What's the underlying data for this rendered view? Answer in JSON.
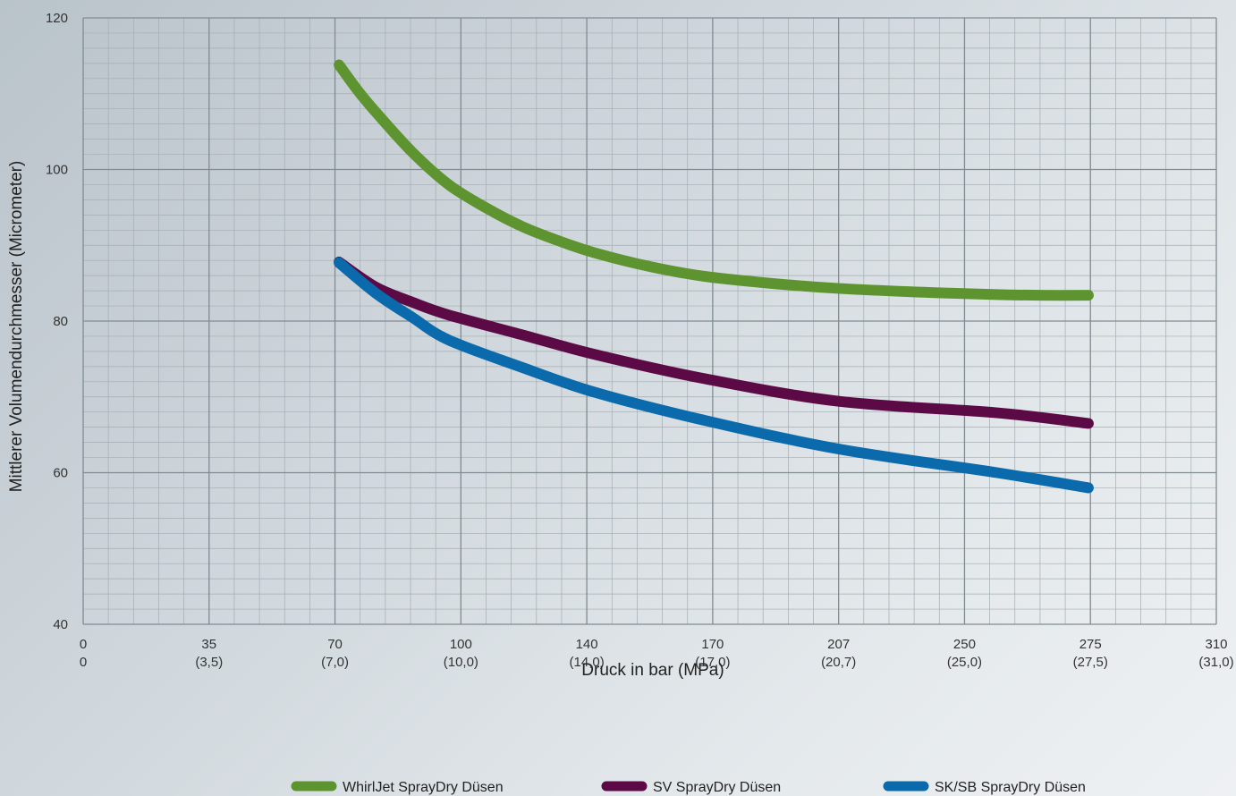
{
  "chart_data": {
    "type": "line",
    "xlabel": "Druck in bar (MPa)",
    "ylabel": "Mittlerer Volumendurchmesser (Micrometer)",
    "ylim": [
      40,
      120
    ],
    "grid": true,
    "legend_position": "bottom",
    "y_ticks": [
      "40",
      "60",
      "80",
      "100",
      "120"
    ],
    "x_ticks": [
      {
        "top": "0",
        "bottom": "0"
      },
      {
        "top": "35",
        "bottom": "(3,5)"
      },
      {
        "top": "70",
        "bottom": "(7,0)"
      },
      {
        "top": "100",
        "bottom": "(10,0)"
      },
      {
        "top": "140",
        "bottom": "(14,0)"
      },
      {
        "top": "170",
        "bottom": "(17,0)"
      },
      {
        "top": "207",
        "bottom": "(20,7)"
      },
      {
        "top": "250",
        "bottom": "(25,0)"
      },
      {
        "top": "275",
        "bottom": "(27,5)"
      },
      {
        "top": "310",
        "bottom": "(31,0)"
      }
    ],
    "x_tick_values": [
      0,
      35,
      70,
      100,
      140,
      170,
      207,
      250,
      275,
      310
    ],
    "series": [
      {
        "name": "WhirlJet SprayDry Düsen",
        "color": "#5e9430",
        "x": [
          70,
          75,
          80,
          90,
          100,
          110,
          120,
          130,
          140,
          155,
          170,
          190,
          207,
          230,
          250,
          262,
          275
        ],
        "y": [
          113.8,
          110.5,
          107.6,
          102.3,
          98.0,
          95.0,
          92.5,
          90.6,
          89.0,
          87.2,
          85.9,
          84.9,
          84.3,
          83.8,
          83.5,
          83.4,
          83.4
        ]
      },
      {
        "name": "SV SprayDry Düsen",
        "color": "#5c0a45",
        "x": [
          70,
          80,
          90,
          100,
          120,
          140,
          170,
          207,
          250,
          275
        ],
        "y": [
          87.8,
          84.5,
          82.5,
          80.8,
          78.2,
          75.6,
          72.4,
          69.4,
          67.9,
          66.5
        ]
      },
      {
        "name": "SK/SB SprayDry Düsen",
        "color": "#0a6aab",
        "x": [
          70,
          80,
          90,
          100,
          120,
          140,
          170,
          207,
          250,
          275
        ],
        "y": [
          87.7,
          83.7,
          80.5,
          77.5,
          73.9,
          70.6,
          66.9,
          63.1,
          60.0,
          58.0
        ]
      }
    ]
  }
}
